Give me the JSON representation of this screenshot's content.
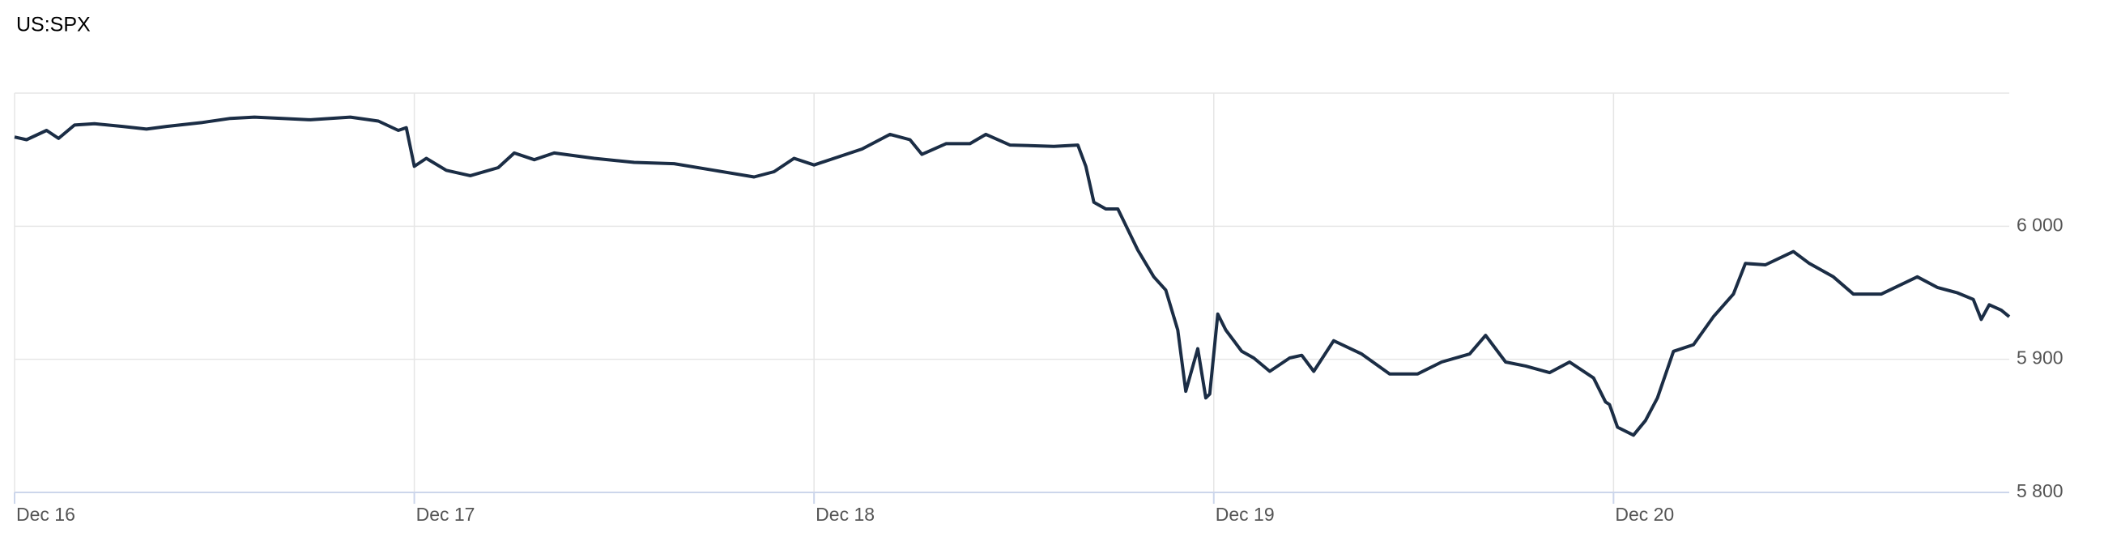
{
  "chart_data": {
    "type": "line",
    "title": "US:SPX",
    "x": [
      0,
      0.03,
      0.08,
      0.11,
      0.15,
      0.2,
      0.27,
      0.33,
      0.38,
      0.47,
      0.54,
      0.6,
      0.67,
      0.74,
      0.84,
      0.91,
      0.96,
      0.98,
      1,
      1.03,
      1.08,
      1.14,
      1.21,
      1.25,
      1.3,
      1.35,
      1.45,
      1.55,
      1.65,
      1.75,
      1.85,
      1.9,
      1.95,
      2,
      2.06,
      2.12,
      2.19,
      2.24,
      2.27,
      2.33,
      2.39,
      2.43,
      2.49,
      2.6,
      2.66,
      2.68,
      2.7,
      2.73,
      2.76,
      2.81,
      2.85,
      2.88,
      2.91,
      2.93,
      2.96,
      2.98,
      2.99,
      3.01,
      3.03,
      3.07,
      3.1,
      3.14,
      3.19,
      3.22,
      3.25,
      3.3,
      3.37,
      3.44,
      3.51,
      3.57,
      3.64,
      3.68,
      3.73,
      3.78,
      3.84,
      3.89,
      3.95,
      3.98,
      3.99,
      4.01,
      4.05,
      4.08,
      4.11,
      4.15,
      4.2,
      4.25,
      4.3,
      4.33,
      4.38,
      4.45,
      4.49,
      4.55,
      4.6,
      4.67,
      4.76,
      4.81,
      4.86,
      4.9,
      4.92,
      4.94,
      4.97,
      4.99
    ],
    "values": [
      6067,
      6065,
      6072,
      6066,
      6076,
      6077,
      6075,
      6073,
      6075,
      6078,
      6081,
      6082,
      6081,
      6080,
      6082,
      6079,
      6072,
      6074,
      6045,
      6051,
      6042,
      6038,
      6044,
      6055,
      6050,
      6055,
      6051,
      6048,
      6047,
      6042,
      6037,
      6041,
      6051,
      6046,
      6052,
      6058,
      6069,
      6065,
      6054,
      6062,
      6062,
      6069,
      6061,
      6060,
      6061,
      6045,
      6018,
      6013,
      6013,
      5982,
      5962,
      5952,
      5922,
      5876,
      5908,
      5871,
      5874,
      5934,
      5922,
      5906,
      5901,
      5891,
      5901,
      5903,
      5891,
      5914,
      5904,
      5889,
      5889,
      5898,
      5904,
      5918,
      5898,
      5895,
      5890,
      5898,
      5886,
      5868,
      5866,
      5849,
      5843,
      5854,
      5871,
      5906,
      5911,
      5932,
      5949,
      5972,
      5971,
      5981,
      5972,
      5962,
      5949,
      5949,
      5962,
      5954,
      5950,
      5945,
      5930,
      5941,
      5937,
      5932
    ],
    "color": "#1b2d45",
    "xlim": [
      0,
      4.99
    ],
    "xticks": [
      {
        "value": 0,
        "label": "Dec 16"
      },
      {
        "value": 1,
        "label": "Dec 17"
      },
      {
        "value": 2,
        "label": "Dec 18"
      },
      {
        "value": 3,
        "label": "Dec 19"
      },
      {
        "value": 4,
        "label": "Dec 20"
      }
    ],
    "ylim": [
      5800,
      6100
    ],
    "yticks": [
      {
        "value": 5800,
        "label": "5 800"
      },
      {
        "value": 5900,
        "label": "5 900"
      },
      {
        "value": 6000,
        "label": "6 000"
      }
    ],
    "grid": true
  }
}
